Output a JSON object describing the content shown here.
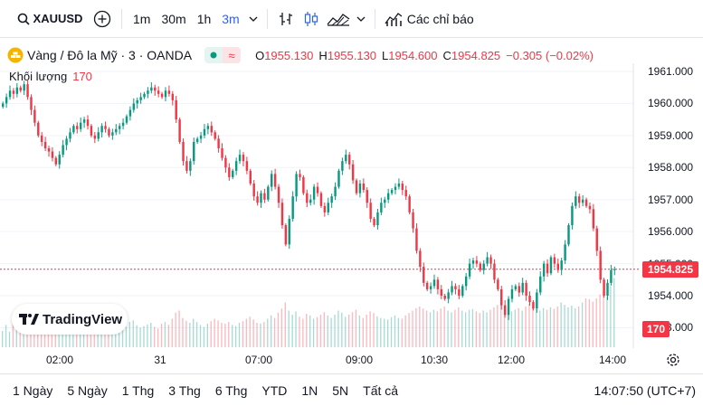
{
  "toolbar": {
    "symbol": "XAUUSD",
    "intervals": [
      "1m",
      "30m",
      "1h",
      "3m"
    ],
    "active_interval": "3m",
    "indicators_label": "Các chỉ báo"
  },
  "legend": {
    "title": "Vàng / Đô la Mỹ · 3 · OANDA",
    "open_label": "O",
    "open": "1955.130",
    "high_label": "H",
    "high": "1955.130",
    "low_label": "L",
    "low": "1954.600",
    "close_label": "C",
    "close": "1954.825",
    "change": "−0.305 (−0.02%)"
  },
  "volume_legend": {
    "label": "Khối lượng",
    "value": "170"
  },
  "price_axis": {
    "ticks": [
      "1961.000",
      "1960.000",
      "1959.000",
      "1958.000",
      "1957.000",
      "1956.000",
      "1955.000",
      "1954.000",
      "1953.000"
    ],
    "last_price": "1954.825",
    "last_volume": "170"
  },
  "time_axis": {
    "ticks": [
      "02:00",
      "31",
      "07:00",
      "09:00",
      "10:30",
      "12:00",
      "14:00"
    ]
  },
  "branding": {
    "logo_text": "TradingView"
  },
  "ranges": [
    "1 Ngày",
    "5 Ngày",
    "1 Thg",
    "3 Thg",
    "6 Thg",
    "YTD",
    "1N",
    "5N",
    "Tất cả"
  ],
  "clock": "14:07:50 (UTC+7)",
  "colors": {
    "up": "#089981",
    "down": "#f23645",
    "accent": "#2962ff"
  },
  "chart_data": {
    "type": "candlestick",
    "ylim": [
      1952.8,
      1961.2
    ],
    "closes": [
      1960.0,
      1960.2,
      1960.4,
      1960.3,
      1960.5,
      1960.4,
      1960.6,
      1960.2,
      1959.8,
      1959.4,
      1959.0,
      1958.8,
      1958.6,
      1958.5,
      1958.3,
      1958.1,
      1958.4,
      1958.7,
      1958.9,
      1959.1,
      1959.3,
      1959.2,
      1959.4,
      1959.5,
      1959.3,
      1959.0,
      1958.9,
      1959.1,
      1959.3,
      1959.2,
      1959.0,
      1959.1,
      1959.2,
      1959.3,
      1959.4,
      1959.6,
      1959.8,
      1960.0,
      1960.1,
      1960.2,
      1960.3,
      1960.4,
      1960.5,
      1960.4,
      1960.3,
      1960.2,
      1960.4,
      1960.3,
      1960.1,
      1959.5,
      1958.8,
      1958.2,
      1957.9,
      1958.2,
      1958.8,
      1958.9,
      1959.0,
      1959.2,
      1959.3,
      1959.1,
      1958.9,
      1958.6,
      1958.3,
      1958.0,
      1957.7,
      1957.9,
      1958.2,
      1958.4,
      1958.2,
      1957.9,
      1957.5,
      1957.1,
      1956.9,
      1957.2,
      1957.0,
      1957.4,
      1957.8,
      1957.4,
      1956.9,
      1956.2,
      1955.6,
      1956.4,
      1957.1,
      1957.8,
      1957.7,
      1957.2,
      1956.9,
      1957.0,
      1957.4,
      1957.2,
      1956.8,
      1956.6,
      1956.9,
      1957.1,
      1957.4,
      1957.9,
      1958.2,
      1958.4,
      1958.1,
      1957.6,
      1957.2,
      1957.5,
      1957.3,
      1956.9,
      1956.4,
      1956.2,
      1956.6,
      1956.9,
      1957.0,
      1957.2,
      1957.3,
      1957.4,
      1957.5,
      1957.3,
      1957.1,
      1956.6,
      1956.1,
      1955.4,
      1954.9,
      1954.4,
      1954.2,
      1954.3,
      1954.5,
      1954.2,
      1954.0,
      1953.9,
      1954.1,
      1954.3,
      1954.2,
      1954.0,
      1954.3,
      1954.6,
      1955.0,
      1955.1,
      1955.0,
      1954.8,
      1955.0,
      1955.2,
      1955.0,
      1954.5,
      1954.2,
      1953.7,
      1953.4,
      1953.9,
      1954.2,
      1954.3,
      1954.1,
      1954.4,
      1954.0,
      1953.8,
      1953.6,
      1954.1,
      1954.6,
      1955.0,
      1954.7,
      1955.2,
      1955.0,
      1954.8,
      1955.1,
      1955.6,
      1956.2,
      1956.8,
      1957.1,
      1956.9,
      1957.0,
      1956.8,
      1956.7,
      1956.1,
      1955.4,
      1954.5,
      1954.0,
      1954.4,
      1954.8,
      1954.825
    ],
    "volumes": [
      40,
      55,
      38,
      60,
      45,
      70,
      52,
      48,
      66,
      58,
      42,
      75,
      50,
      46,
      62,
      55,
      40,
      58,
      65,
      44,
      50,
      60,
      48,
      52,
      57,
      46,
      62,
      50,
      40,
      55,
      48,
      52,
      60,
      45,
      58,
      50,
      62,
      66,
      54,
      48,
      52,
      56,
      60,
      50,
      46,
      58,
      62,
      55,
      70,
      85,
      90,
      72,
      65,
      60,
      70,
      62,
      55,
      50,
      58,
      64,
      70,
      66,
      60,
      58,
      62,
      55,
      52,
      60,
      64,
      70,
      75,
      68,
      60,
      58,
      62,
      70,
      78,
      72,
      85,
      95,
      110,
      90,
      80,
      88,
      75,
      70,
      82,
      78,
      70,
      74,
      80,
      86,
      78,
      72,
      80,
      90,
      85,
      75,
      80,
      86,
      92,
      78,
      72,
      80,
      88,
      84,
      76,
      72,
      70,
      68,
      74,
      78,
      72,
      70,
      78,
      84,
      90,
      96,
      100,
      95,
      90,
      86,
      92,
      88,
      95,
      100,
      90,
      86,
      92,
      98,
      90,
      86,
      92,
      94,
      88,
      84,
      90,
      86,
      92,
      98,
      104,
      110,
      100,
      94,
      88,
      92,
      96,
      90,
      100,
      106,
      100,
      94,
      90,
      96,
      92,
      98,
      94,
      100,
      110,
      104,
      98,
      102,
      96,
      100,
      110,
      120,
      118,
      112,
      120,
      130,
      140,
      125,
      150,
      170
    ]
  }
}
